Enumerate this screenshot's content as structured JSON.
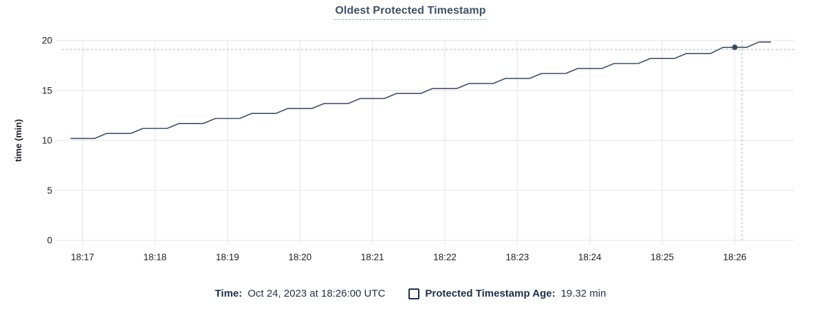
{
  "title": "Oldest Protected Timestamp",
  "colors": {
    "line": "#3e4d66",
    "dot": "#3a485f",
    "crosshair": "#9fb3c3",
    "grid": "#ececec",
    "tick_text": "#202124",
    "title_text": "#3d5169",
    "legend_text": "#1c2f4d"
  },
  "chart_data": {
    "type": "line",
    "title": "Oldest Protected Timestamp",
    "xlabel": "",
    "ylabel": "time (min)",
    "ylim": [
      0,
      20
    ],
    "yticks": [
      0,
      5,
      10,
      15,
      20
    ],
    "grid": true,
    "legend_position": "bottom",
    "x_unit": "seconds after 18:17:00",
    "xlim_seconds": [
      -17.1,
      589.2
    ],
    "xticks": [
      {
        "s": 0,
        "label": "18:17"
      },
      {
        "s": 60,
        "label": "18:18"
      },
      {
        "s": 120,
        "label": "18:19"
      },
      {
        "s": 180,
        "label": "18:20"
      },
      {
        "s": 240,
        "label": "18:21"
      },
      {
        "s": 300,
        "label": "18:22"
      },
      {
        "s": 360,
        "label": "18:23"
      },
      {
        "s": 420,
        "label": "18:24"
      },
      {
        "s": 480,
        "label": "18:25"
      },
      {
        "s": 540,
        "label": "18:26"
      }
    ],
    "series": [
      {
        "name": "Protected Timestamp Age",
        "x_seconds": [
          -10,
          0,
          10,
          20,
          30,
          40,
          50,
          60,
          70,
          80,
          90,
          100,
          110,
          120,
          130,
          140,
          150,
          160,
          170,
          180,
          190,
          200,
          210,
          220,
          230,
          240,
          250,
          260,
          270,
          280,
          290,
          300,
          310,
          320,
          330,
          340,
          350,
          360,
          370,
          380,
          390,
          400,
          410,
          420,
          430,
          440,
          450,
          460,
          470,
          480,
          490,
          500,
          510,
          520,
          530,
          540,
          550,
          560,
          570
        ],
        "values": [
          10.2,
          10.2,
          10.2,
          10.7,
          10.7,
          10.7,
          11.2,
          11.2,
          11.2,
          11.7,
          11.7,
          11.7,
          12.2,
          12.2,
          12.2,
          12.7,
          12.7,
          12.7,
          13.2,
          13.2,
          13.2,
          13.7,
          13.7,
          13.7,
          14.2,
          14.2,
          14.2,
          14.7,
          14.7,
          14.7,
          15.2,
          15.2,
          15.2,
          15.7,
          15.7,
          15.7,
          16.2,
          16.2,
          16.2,
          16.7,
          16.7,
          16.7,
          17.2,
          17.2,
          17.2,
          17.7,
          17.7,
          17.7,
          18.2,
          18.2,
          18.2,
          18.7,
          18.7,
          18.7,
          19.3,
          19.32,
          19.32,
          19.85,
          19.85
        ]
      }
    ],
    "highlight": {
      "x_seconds": 540,
      "value": 19.32
    },
    "crosshair": {
      "x_seconds": 546,
      "value": 19.1
    }
  },
  "legend": {
    "time_label": "Time:",
    "time_value": "Oct 24, 2023 at 18:26:00 UTC",
    "series_checkbox_icon": "square-outline",
    "series_label": "Protected Timestamp Age:",
    "series_value": "19.32 min"
  }
}
